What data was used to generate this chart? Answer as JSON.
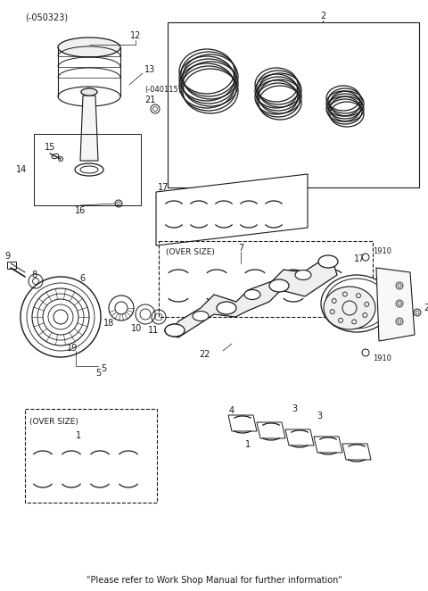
{
  "bg_color": "#ffffff",
  "line_color": "#1a1a1a",
  "footer_text": "\"Please refer to Work Shop Manual for further information\"",
  "part_code": "(-050323)",
  "fig_width": 4.8,
  "fig_height": 6.62,
  "dpi": 100
}
